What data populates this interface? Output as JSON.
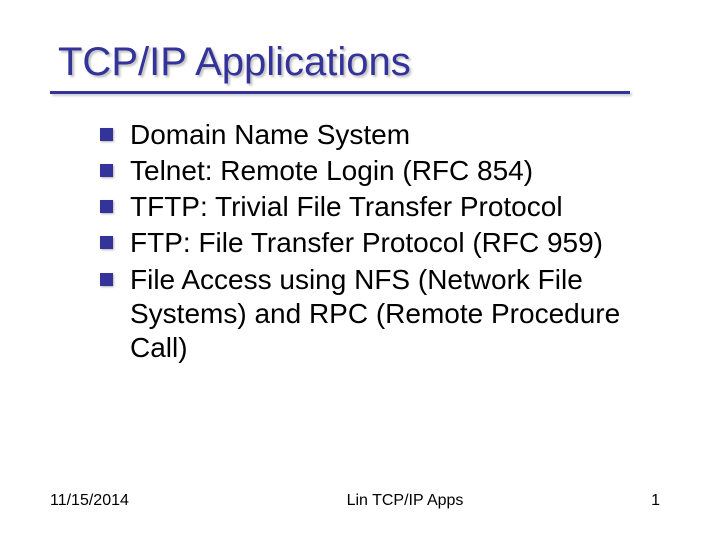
{
  "slide": {
    "title": "TCP/IP Applications",
    "title_color": "#333399",
    "title_fontsize": 40,
    "underline_color": "#333399",
    "bullet_color": "#333399",
    "text_color": "#000000",
    "body_fontsize": 28,
    "background_color": "#ffffff",
    "bullets": [
      "Domain Name System",
      "Telnet: Remote Login (RFC 854)",
      "TFTP: Trivial File Transfer Protocol",
      "FTP: File Transfer Protocol (RFC 959)",
      "File Access using NFS (Network File Systems) and RPC (Remote Procedure Call)"
    ]
  },
  "footer": {
    "date": "11/15/2014",
    "title": "Lin TCP/IP Apps",
    "page": "1",
    "fontsize": 16
  }
}
